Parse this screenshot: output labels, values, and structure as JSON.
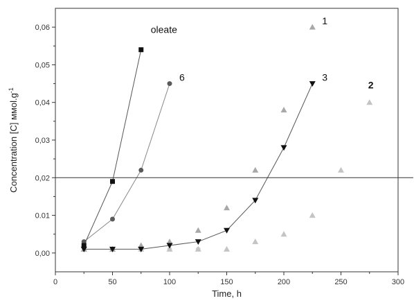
{
  "chart_data": {
    "type": "scatter",
    "title": "",
    "xlabel": "Time, h",
    "ylabel": "Concentration [C] ммоl.g",
    "ylabel_superscript": "-1",
    "xlim": [
      0,
      300
    ],
    "ylim": [
      -0.005,
      0.065
    ],
    "x_ticks": [
      0,
      50,
      100,
      150,
      200,
      250,
      300
    ],
    "x_tick_labels": [
      "0",
      "50",
      "100",
      "150",
      "200",
      "250",
      "300"
    ],
    "y_ticks": [
      0.0,
      0.01,
      0.02,
      0.03,
      0.04,
      0.05,
      0.06
    ],
    "y_tick_labels": [
      "0,00",
      "0.01",
      "0,02",
      "0,03",
      "0,04",
      "0,05",
      "0,06"
    ],
    "grid": false,
    "reference_line": {
      "y": 0.02
    },
    "series": [
      {
        "name": "oleate",
        "marker": "square",
        "color": "#111111",
        "fit_line": true,
        "x": [
          25,
          50,
          75
        ],
        "y": [
          0.002,
          0.019,
          0.054
        ]
      },
      {
        "name": "6",
        "marker": "circle",
        "color": "#5a5a5a",
        "fit_line": true,
        "x": [
          25,
          50,
          75,
          100
        ],
        "y": [
          0.003,
          0.009,
          0.022,
          0.045
        ]
      },
      {
        "name": "3",
        "marker": "triangle-down",
        "color": "#111111",
        "fit_line": true,
        "x": [
          25,
          50,
          75,
          100,
          125,
          150,
          175,
          200,
          225
        ],
        "y": [
          0.001,
          0.001,
          0.001,
          0.002,
          0.003,
          0.006,
          0.014,
          0.028,
          0.045
        ]
      },
      {
        "name": "1",
        "marker": "triangle-up",
        "color": "#a8a8a8",
        "fit_line": false,
        "x": [
          25,
          50,
          75,
          100,
          125,
          150,
          175,
          200,
          225
        ],
        "y": [
          0.001,
          0.001,
          0.002,
          0.003,
          0.006,
          0.012,
          0.022,
          0.038,
          0.06
        ]
      },
      {
        "name": "2",
        "marker": "triangle-up",
        "color": "#c4c4c4",
        "fit_line": false,
        "x": [
          25,
          50,
          75,
          100,
          125,
          150,
          175,
          200,
          225,
          250,
          275
        ],
        "y": [
          0.001,
          0.001,
          0.001,
          0.001,
          0.001,
          0.001,
          0.003,
          0.005,
          0.01,
          0.022,
          0.04
        ]
      },
      {
        "name": "",
        "marker": "circle",
        "color": "#d6d6d6",
        "fit_line": false,
        "x": [
          50,
          75,
          100,
          125
        ],
        "y": [
          0.001,
          0.001,
          0.001,
          0.001
        ]
      }
    ]
  }
}
